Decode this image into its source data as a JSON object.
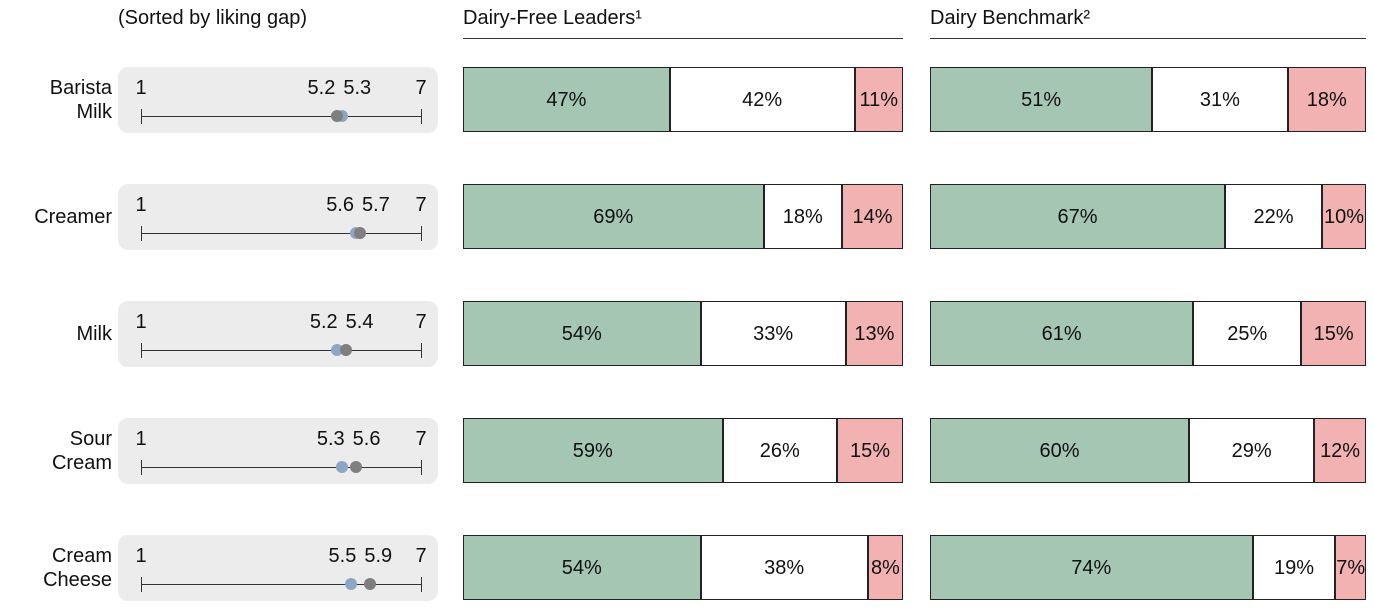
{
  "chart_data": [
    {
      "type": "dot",
      "subtitle": "(Sorted by liking gap)",
      "categories": [
        "Barista Milk",
        "Creamer",
        "Milk",
        "Sour Cream",
        "Cream Cheese"
      ],
      "xlim": [
        1,
        7
      ],
      "xticks": [
        1,
        7
      ],
      "series": [
        {
          "color": "#8ea6c6",
          "values": [
            5.3,
            5.6,
            5.2,
            5.3,
            5.5
          ]
        },
        {
          "color": "#7f7f7f",
          "values": [
            5.2,
            5.7,
            5.4,
            5.6,
            5.9
          ]
        }
      ]
    },
    {
      "type": "stacked_bar",
      "title": "Dairy-Free Leaders¹",
      "series": [
        {
          "color": "#a6c6b4",
          "values": [
            47,
            69,
            54,
            59,
            54
          ],
          "value_labels": [
            "47%",
            "69%",
            "54%",
            "59%",
            "54%"
          ]
        },
        {
          "color": "#ffffff",
          "values": [
            42,
            18,
            33,
            26,
            38
          ],
          "value_labels": [
            "42%",
            "18%",
            "33%",
            "26%",
            "38%"
          ]
        },
        {
          "color": "#f3b2b2",
          "values": [
            11,
            14,
            13,
            15,
            8
          ],
          "value_labels": [
            "11%",
            "14%",
            "13%",
            "15%",
            "8%"
          ]
        }
      ]
    },
    {
      "type": "stacked_bar",
      "title": "Dairy Benchmark²",
      "series": [
        {
          "color": "#a6c6b4",
          "values": [
            51,
            67,
            61,
            60,
            74
          ],
          "value_labels": [
            "51%",
            "67%",
            "61%",
            "60%",
            "74%"
          ]
        },
        {
          "color": "#ffffff",
          "values": [
            31,
            22,
            25,
            29,
            19
          ],
          "value_labels": [
            "31%",
            "22%",
            "25%",
            "29%",
            "19%"
          ]
        },
        {
          "color": "#f3b2b2",
          "values": [
            18,
            10,
            15,
            12,
            7
          ],
          "value_labels": [
            "18%",
            "10%",
            "15%",
            "12%",
            "7%"
          ]
        }
      ]
    }
  ]
}
